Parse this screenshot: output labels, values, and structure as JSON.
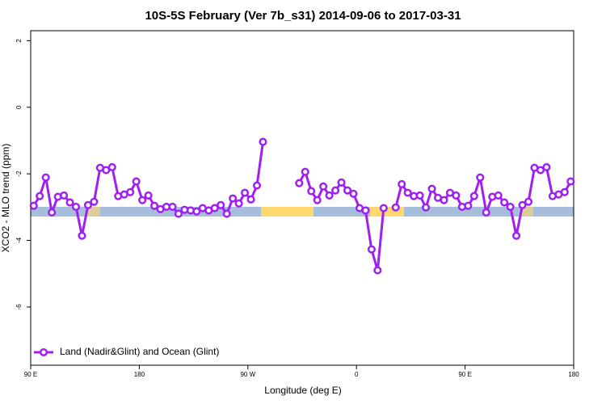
{
  "chart_data": {
    "type": "line",
    "title": "10S-5S February (Ver 7b_s31)   2014-09-06 to 2017-03-31",
    "xlabel": "Longitude (deg E)",
    "ylabel": "XCO2 - MLO trend (ppm)",
    "xlim": [
      90,
      540
    ],
    "ylim": [
      -7.75,
      2.3
    ],
    "xticks": [
      {
        "value": 90,
        "label": "90 E"
      },
      {
        "value": 180,
        "label": "180"
      },
      {
        "value": 270,
        "label": "90 W"
      },
      {
        "value": 360,
        "label": "0"
      },
      {
        "value": 450,
        "label": "90 E"
      },
      {
        "value": 540,
        "label": "180"
      }
    ],
    "yticks": [
      2,
      0,
      -2,
      -4,
      -6
    ],
    "legend": "bottom-left",
    "x": [
      92.5,
      97.5,
      102.5,
      107.5,
      112.5,
      117.5,
      122.5,
      127.5,
      132.5,
      137.5,
      142.5,
      147.5,
      152.5,
      157.5,
      162.5,
      167.5,
      172.5,
      177.5,
      182.5,
      187.5,
      192.5,
      197.5,
      202.5,
      207.5,
      212.5,
      217.5,
      222.5,
      227.5,
      232.5,
      237.5,
      242.5,
      247.5,
      252.5,
      257.5,
      262.5,
      267.5,
      272.5,
      277.5,
      282.5,
      287.5,
      292.5,
      297.5,
      302.5,
      307.5,
      312.5,
      317.5,
      322.5,
      327.5,
      332.5,
      337.5,
      342.5,
      347.5,
      352.5,
      357.5,
      362.5,
      367.5,
      372.5,
      377.5,
      382.5,
      387.5,
      392.5,
      397.5,
      402.5,
      407.5,
      412.5,
      417.5,
      422.5,
      427.5,
      432.5,
      437.5,
      442.5,
      447.5,
      452.5,
      457.5,
      462.5,
      467.5,
      472.5,
      477.5,
      482.5,
      487.5,
      492.5,
      497.5,
      502.5,
      507.5,
      512.5,
      517.5,
      522.5,
      527.5,
      532.5,
      537.5
    ],
    "series": [
      {
        "name": "Land (Nadir&Glint) and Ocean (Glint)",
        "color": "#a020f0",
        "values": [
          -2.96,
          -2.67,
          -2.11,
          -3.16,
          -2.69,
          -2.65,
          -2.86,
          -2.99,
          -3.86,
          -2.94,
          -2.84,
          -1.82,
          -1.89,
          -1.8,
          -2.67,
          -2.62,
          -2.55,
          -2.23,
          -2.79,
          -2.65,
          -2.96,
          -3.06,
          -2.99,
          -2.99,
          -3.2,
          -3.08,
          -3.1,
          -3.13,
          -3.03,
          -3.1,
          -3.03,
          -2.94,
          -3.2,
          -2.74,
          -2.89,
          -2.57,
          -2.77,
          -2.35,
          -1.04,
          null,
          null,
          null,
          null,
          null,
          -2.28,
          -1.94,
          -2.52,
          -2.79,
          -2.38,
          -2.65,
          -2.5,
          -2.26,
          -2.5,
          -2.6,
          -3.03,
          -3.1,
          -4.27,
          -4.9,
          -3.03,
          null,
          -3.01,
          -2.31,
          -2.57,
          -2.67,
          -2.65,
          -3.01,
          -2.45,
          -2.72,
          -2.79,
          -2.57,
          -2.65,
          -2.99,
          -2.96,
          -2.67,
          -2.11,
          -3.16,
          -2.69,
          -2.65,
          -2.86,
          -2.99,
          -3.86,
          -2.94,
          -2.84,
          -1.82,
          -1.89,
          -1.8,
          -2.67,
          -2.62,
          -2.55,
          -2.23
        ]
      }
    ]
  }
}
